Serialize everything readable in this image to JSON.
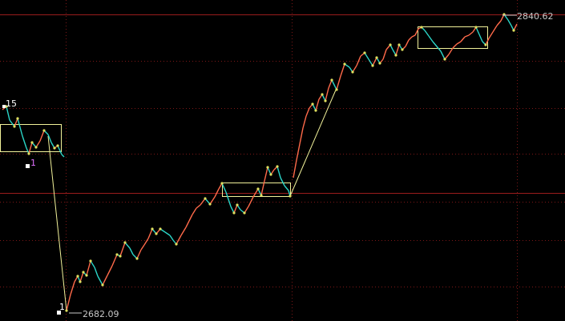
{
  "chart_data": {
    "type": "line",
    "price_labels": {
      "high": "2840.62",
      "low": "2682.09"
    },
    "wave_labels": {
      "top_left": "15",
      "mid_left": "1",
      "bottom_left": "1"
    },
    "ylim": [
      2675,
      2845
    ],
    "colors": {
      "background": "#000000",
      "grid_dotted": "#8a1a1a",
      "grid_solid": "#a01c1c",
      "box": "#f2f29a",
      "wave_up": "#ff6a4a",
      "wave_down": "#2bd6c8",
      "wave_mid": "#e0e060",
      "label_white": "#ffffff",
      "label_magenta": "#e070ff",
      "label_gray": "#c8c8c8"
    }
  }
}
